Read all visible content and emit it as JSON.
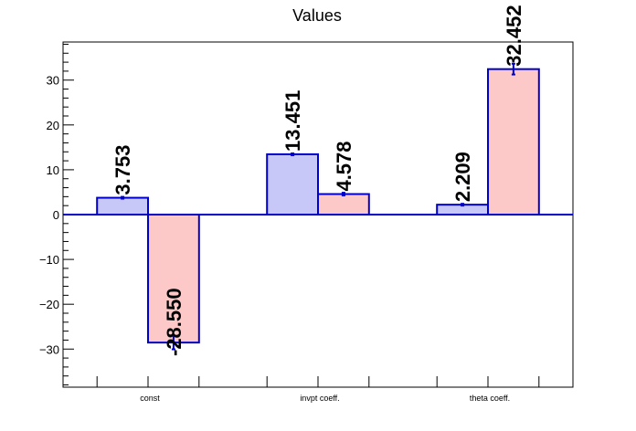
{
  "chart_data": {
    "type": "bar",
    "title": "Values",
    "xlabel": "",
    "ylabel": "",
    "categories": [
      "const",
      "invpt coeff.",
      "theta coeff."
    ],
    "ylim": [
      -38.5,
      38.5
    ],
    "yticks": [
      -30,
      -20,
      -10,
      0,
      10,
      20,
      30
    ],
    "ytick_labels": [
      "−30",
      "−20",
      "−10",
      "0",
      "10",
      "20",
      "30"
    ],
    "grid": false,
    "series": [
      {
        "values": [
          3.753,
          13.451,
          2.209
        ],
        "labels": [
          "3.753",
          "13.451",
          "2.209"
        ],
        "errors": [
          0.2,
          0.2,
          0.2
        ],
        "fill_color": "#c8c8f8",
        "edge_color": "#0000cc"
      },
      {
        "values": [
          -28.55,
          4.578,
          32.452
        ],
        "labels": [
          "-28.550",
          "4.578",
          "32.452"
        ],
        "errors": [
          1.5,
          0.3,
          1.2
        ],
        "fill_color": "#fcc8c8",
        "edge_color": "#0000cc"
      }
    ],
    "baseline_color": "#0000cc"
  }
}
